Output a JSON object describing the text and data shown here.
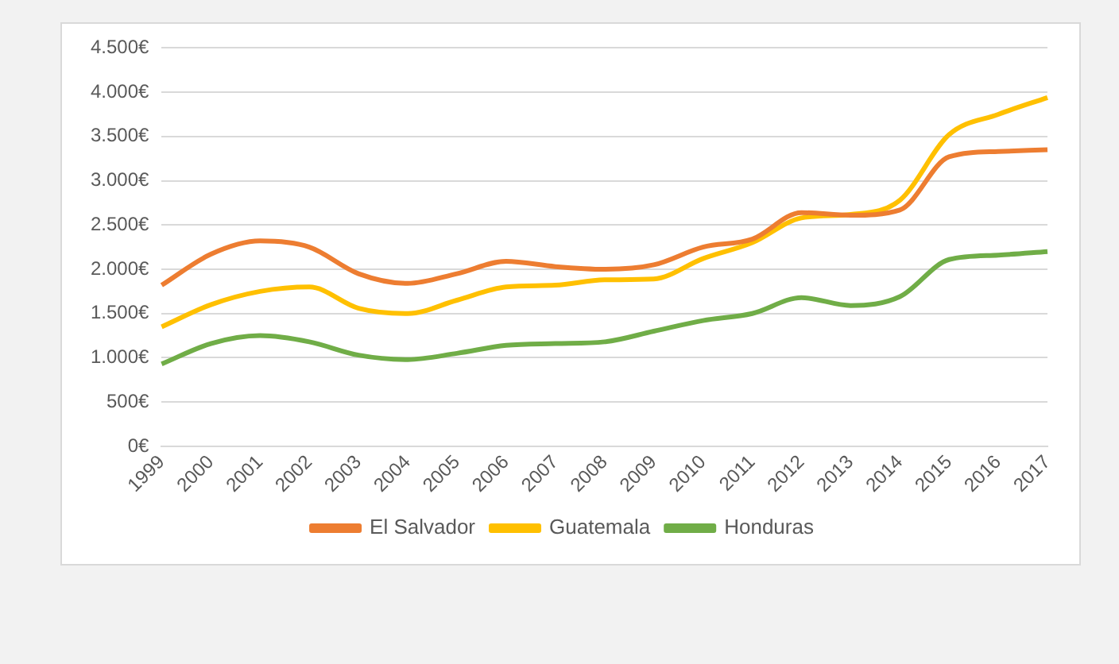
{
  "chart_data": {
    "type": "line",
    "categories": [
      "1999",
      "2000",
      "2001",
      "2002",
      "2003",
      "2004",
      "2005",
      "2006",
      "2007",
      "2008",
      "2009",
      "2010",
      "2011",
      "2012",
      "2013",
      "2014",
      "2015",
      "2016",
      "2017"
    ],
    "series": [
      {
        "name": "El Salvador",
        "color": "#ed7d31",
        "values": [
          1820,
          2170,
          2320,
          2250,
          1950,
          1840,
          1950,
          2090,
          2030,
          2000,
          2050,
          2250,
          2340,
          2640,
          2610,
          2670,
          3270,
          3330,
          3350
        ]
      },
      {
        "name": "Guatemala",
        "color": "#ffc000",
        "values": [
          1350,
          1600,
          1750,
          1800,
          1560,
          1500,
          1650,
          1800,
          1820,
          1880,
          1890,
          2120,
          2300,
          2580,
          2620,
          2780,
          3520,
          3750,
          3940
        ]
      },
      {
        "name": "Honduras",
        "color": "#70ad47",
        "values": [
          930,
          1160,
          1250,
          1180,
          1030,
          980,
          1050,
          1140,
          1160,
          1180,
          1300,
          1420,
          1500,
          1680,
          1590,
          1690,
          2110,
          2160,
          2200
        ]
      }
    ],
    "ylim": [
      0,
      4500
    ],
    "yticks": [
      {
        "value": 0,
        "label": "0€"
      },
      {
        "value": 500,
        "label": "500€"
      },
      {
        "value": 1000,
        "label": "1.000€"
      },
      {
        "value": 1500,
        "label": "1.500€"
      },
      {
        "value": 2000,
        "label": "2.000€"
      },
      {
        "value": 2500,
        "label": "2.500€"
      },
      {
        "value": 3000,
        "label": "3.000€"
      },
      {
        "value": 3500,
        "label": "3.500€"
      },
      {
        "value": 4000,
        "label": "4.000€"
      },
      {
        "value": 4500,
        "label": "4.500€"
      }
    ],
    "grid": "y",
    "legend": "bottom",
    "marker": "none",
    "line_style": "solid"
  }
}
